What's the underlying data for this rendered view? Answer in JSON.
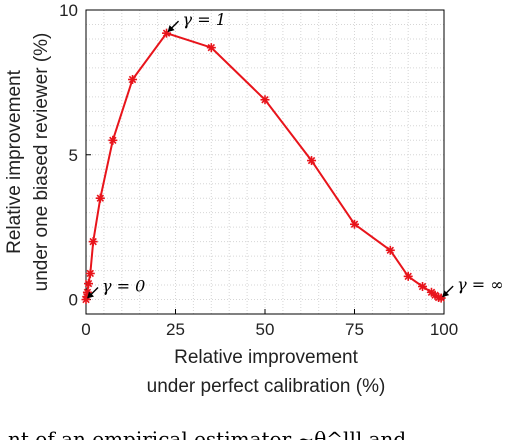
{
  "chart_data": {
    "type": "line",
    "xlabel_lines": [
      "Relative improvement",
      "under perfect calibration (%)"
    ],
    "ylabel_lines": [
      "Relative improvement",
      "under one biased reviewer (%)"
    ],
    "xlim": [
      0,
      100
    ],
    "ylim": [
      -0.5,
      10
    ],
    "x_ticks": [
      0,
      50,
      100
    ],
    "y_ticks": [
      0,
      5,
      10
    ],
    "x_tick_labels": [
      "0",
      "25",
      "50",
      "75",
      "100"
    ],
    "y_tick_labels": [
      "0",
      "5",
      "10"
    ],
    "x_tick_values": [
      0,
      25,
      50,
      75,
      100
    ],
    "y_tick_values": [
      0,
      5,
      10
    ],
    "grid": true,
    "series": [
      {
        "color": "#e8141b",
        "x": [
          0,
          0.2,
          0.4,
          0.7,
          1.2,
          2,
          4,
          7.5,
          13,
          22.5,
          35,
          50,
          63,
          75,
          85,
          90,
          94,
          96.5,
          97.5,
          98.5,
          99.2
        ],
        "y": [
          0,
          0.1,
          0.25,
          0.55,
          0.9,
          2.0,
          3.5,
          5.5,
          7.6,
          9.2,
          8.7,
          6.9,
          4.8,
          2.6,
          1.7,
          0.8,
          0.45,
          0.25,
          0.15,
          0.07,
          0.05
        ]
      }
    ],
    "annotations": [
      {
        "text": "γ = 1",
        "x": 22.5,
        "y": 9.2
      },
      {
        "text": "γ = 0",
        "x": 0,
        "y": 0
      },
      {
        "text": "γ = ∞",
        "x": 99.2,
        "y": 0.05
      }
    ]
  },
  "caption_fragment": "nt   of   an   empirical   estimator   ~θ^lll   and"
}
